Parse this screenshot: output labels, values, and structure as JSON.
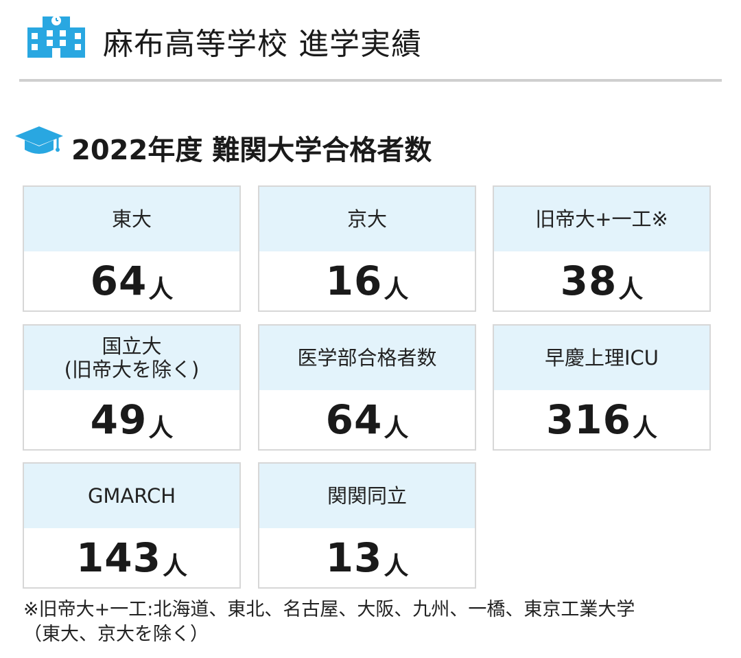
{
  "header": {
    "title": "麻布高等学校 進学実績",
    "icon": "school-building-icon",
    "accent_color": "#29a7e1"
  },
  "section": {
    "title": "2022年度 難関大学合格者数",
    "icon": "graduation-cap-icon"
  },
  "cards": [
    {
      "label": "東大",
      "count": "64",
      "unit": "人"
    },
    {
      "label": "京大",
      "count": "16",
      "unit": "人"
    },
    {
      "label": "旧帝大+一工※",
      "count": "38",
      "unit": "人"
    },
    {
      "label": "国立大\n(旧帝大を除く)",
      "count": "49",
      "unit": "人"
    },
    {
      "label": "医学部合格者数",
      "count": "64",
      "unit": "人"
    },
    {
      "label": "早慶上理ICU",
      "count": "316",
      "unit": "人"
    },
    {
      "label": "GMARCH",
      "count": "143",
      "unit": "人"
    },
    {
      "label": "関関同立",
      "count": "13",
      "unit": "人"
    }
  ],
  "footnote": {
    "line1": "※旧帝大+一工:北海道、東北、名古屋、大阪、九州、一橋、東京工業大学",
    "line2": "（東大、京大を除く）"
  },
  "colors": {
    "card_header_bg": "#e3f3fb",
    "card_border": "#d7d7d7",
    "divider": "#cfcfcf"
  }
}
